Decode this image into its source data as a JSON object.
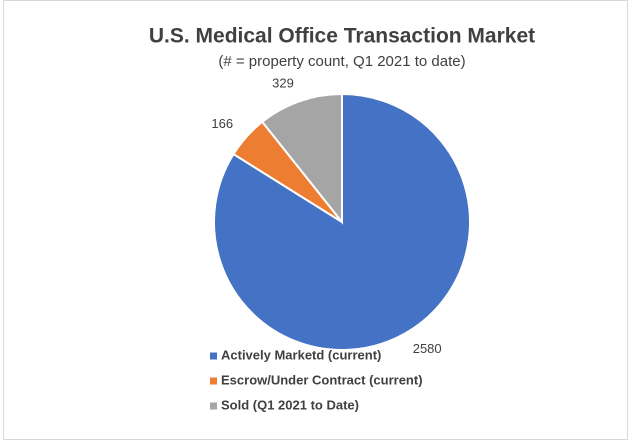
{
  "chart_data": {
    "type": "pie",
    "title": "U.S. Medical Office Transaction Market",
    "subtitle": "(# = property count, Q1 2021 to date)",
    "categories": [
      "Actively Marketd (current)",
      "Escrow/Under Contract (current)",
      "Sold (Q1 2021 to Date)"
    ],
    "values": [
      2580,
      166,
      329
    ],
    "colors": [
      "#4472c4",
      "#ed7d31",
      "#a5a5a5"
    ],
    "legend": "bottom"
  }
}
